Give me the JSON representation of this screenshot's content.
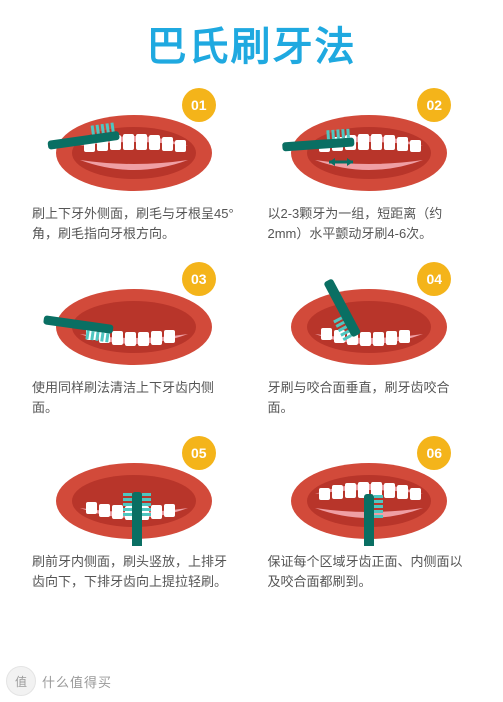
{
  "title": "巴氏刷牙法",
  "title_color": "#1fa9e0",
  "title_fontsize": 40,
  "badge_bg": "#f4b41a",
  "badge_fg": "#ffffff",
  "mouth_outline": "#d24a3a",
  "mouth_inner": "#b8352a",
  "gum_color": "#ef9fa4",
  "tooth_color": "#ffffff",
  "brush_handle": "#0a6f63",
  "brush_bristle": "#4fc6c0",
  "arrow_color": "#0a6f63",
  "caption_color": "#555555",
  "steps": [
    {
      "num": "01",
      "caption": "刷上下牙外侧面，刷毛与牙根呈45°角，刷毛指向牙根方向。"
    },
    {
      "num": "02",
      "caption": "以2-3颗牙为一组，短距离（约2mm）水平颤动牙刷4-6次。"
    },
    {
      "num": "03",
      "caption": "使用同样刷法清洁上下牙齿内侧面。"
    },
    {
      "num": "04",
      "caption": "牙刷与咬合面垂直，刷牙齿咬合面。"
    },
    {
      "num": "05",
      "caption": "刷前牙内侧面，刷头竖放，上排牙齿向下，下排牙齿向上提拉轻刷。"
    },
    {
      "num": "06",
      "caption": "保证每个区域牙齿正面、内侧面以及咬合面都刷到。"
    }
  ],
  "watermark": {
    "badge": "值",
    "text": "什么值得买"
  }
}
